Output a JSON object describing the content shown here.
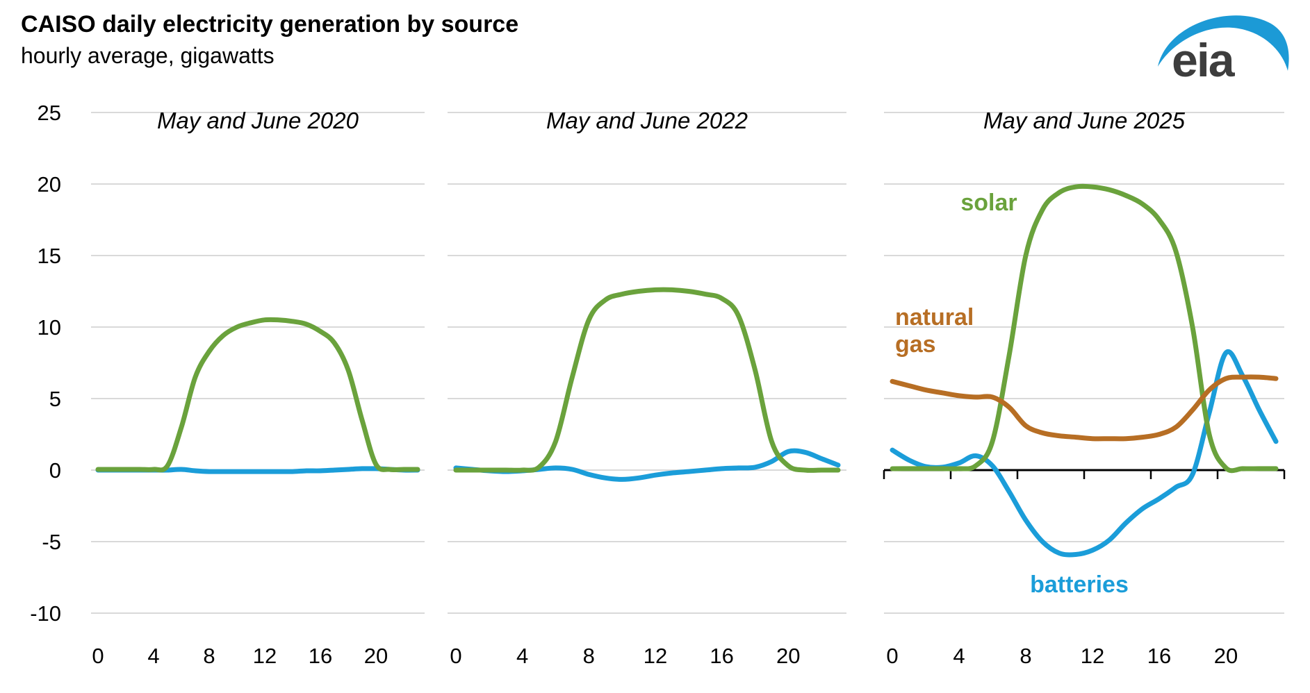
{
  "header": {
    "title": "CAISO daily electricity generation by source",
    "subtitle": "hourly average, gigawatts",
    "logo_text": "eia"
  },
  "colors": {
    "solar": "#6AA23C",
    "batteries": "#1B9DD9",
    "natural_gas": "#B76E24",
    "gridline": "#D9D9D9",
    "zero_axis": "#000000",
    "text": "#000000",
    "logo_text": "#3D3D3D",
    "logo_swoosh": "#1C9AD6"
  },
  "chart_data": {
    "type": "line",
    "unit": "gigawatts",
    "ylabel": "hourly average, gigawatts",
    "ylim": [
      -10,
      25
    ],
    "y_ticks": [
      25,
      20,
      15,
      10,
      5,
      0,
      -5,
      -10
    ],
    "x_tick_hours": [
      0,
      4,
      8,
      12,
      16,
      20
    ],
    "grid": true,
    "legend_position": "inline-annotations",
    "hours": [
      0,
      1,
      2,
      3,
      4,
      5,
      6,
      7,
      8,
      9,
      10,
      11,
      12,
      13,
      14,
      15,
      16,
      17,
      18,
      19,
      20,
      21,
      22,
      23
    ],
    "panels": [
      {
        "title": "May and June 2020",
        "series": [
          {
            "name": "batteries",
            "values": [
              0,
              0,
              0,
              0,
              0,
              0,
              0.05,
              -0.05,
              -0.1,
              -0.1,
              -0.1,
              -0.1,
              -0.1,
              -0.1,
              -0.1,
              -0.05,
              -0.05,
              0,
              0.05,
              0.1,
              0.1,
              0.05,
              0,
              0
            ]
          },
          {
            "name": "solar",
            "values": [
              0.05,
              0.05,
              0.05,
              0.05,
              0.05,
              0.3,
              3.0,
              6.5,
              8.3,
              9.4,
              10.0,
              10.3,
              10.5,
              10.5,
              10.4,
              10.2,
              9.7,
              8.9,
              7.0,
              3.5,
              0.4,
              0.05,
              0.05,
              0.05
            ]
          }
        ]
      },
      {
        "title": "May and June 2022",
        "series": [
          {
            "name": "batteries",
            "values": [
              0.15,
              0.05,
              -0.05,
              -0.1,
              -0.05,
              0.05,
              0.15,
              0.05,
              -0.3,
              -0.55,
              -0.65,
              -0.55,
              -0.35,
              -0.2,
              -0.1,
              0,
              0.1,
              0.15,
              0.2,
              0.6,
              1.3,
              1.25,
              0.8,
              0.35
            ]
          },
          {
            "name": "solar",
            "values": [
              0,
              0,
              0,
              0,
              0,
              0.2,
              2.0,
              6.5,
              10.5,
              11.9,
              12.3,
              12.5,
              12.6,
              12.6,
              12.5,
              12.3,
              12.0,
              10.8,
              7.0,
              2.0,
              0.3,
              0,
              0,
              0
            ]
          }
        ]
      },
      {
        "title": "May and June 2025",
        "zero_axis_with_ticks": true,
        "series": [
          {
            "name": "batteries",
            "values": [
              1.4,
              0.7,
              0.25,
              0.2,
              0.5,
              1.0,
              0.3,
              -1.5,
              -3.5,
              -5.0,
              -5.8,
              -5.9,
              -5.6,
              -4.9,
              -3.7,
              -2.7,
              -2.0,
              -1.2,
              -0.3,
              4.0,
              8.2,
              6.6,
              4.2,
              2.0
            ]
          },
          {
            "name": "solar",
            "values": [
              0.1,
              0.1,
              0.1,
              0.1,
              0.1,
              0.3,
              2.0,
              8.0,
              15.0,
              18.2,
              19.4,
              19.8,
              19.8,
              19.6,
              19.2,
              18.6,
              17.5,
              15.3,
              10.0,
              2.5,
              0.15,
              0.1,
              0.1,
              0.1
            ]
          },
          {
            "name": "natural_gas",
            "values": [
              6.2,
              5.9,
              5.6,
              5.4,
              5.2,
              5.1,
              5.1,
              4.4,
              3.1,
              2.6,
              2.4,
              2.3,
              2.2,
              2.2,
              2.2,
              2.3,
              2.5,
              3.0,
              4.2,
              5.6,
              6.4,
              6.5,
              6.5,
              6.4
            ]
          }
        ]
      }
    ],
    "annotations": [
      {
        "series": "solar",
        "text": "solar"
      },
      {
        "series": "natural_gas",
        "text": "natural gas"
      },
      {
        "series": "batteries",
        "text": "batteries"
      }
    ]
  }
}
